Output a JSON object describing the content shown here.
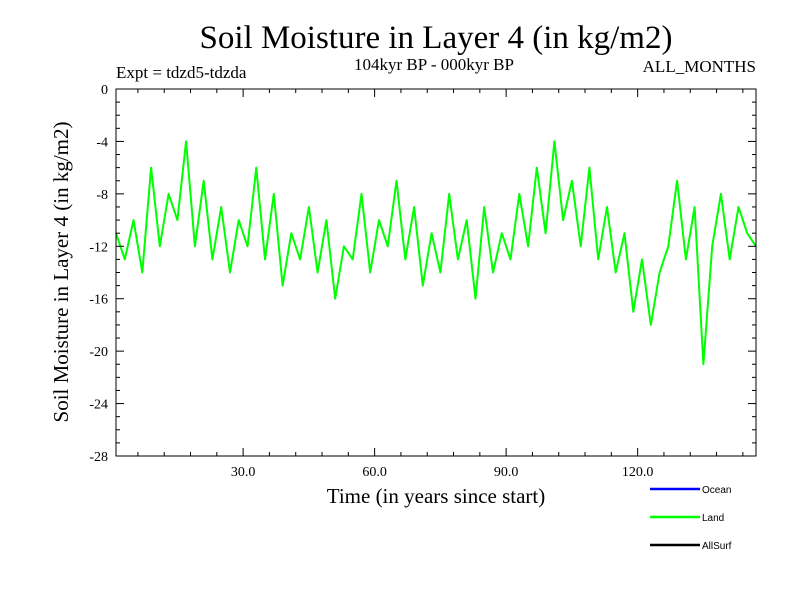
{
  "chart_data": {
    "type": "line",
    "title": "Soil Moisture in Layer 4 (in kg/m2)",
    "subtitle": "104kyr BP - 000kyr BP",
    "experiment": "Expt = tdzd5-tdzda",
    "months": "ALL_MONTHS",
    "xlabel": "Time (in years since start)",
    "ylabel": "Soil Moisture in Layer 4 (in kg/m2)",
    "xlim": [
      1,
      147
    ],
    "ylim": [
      -28,
      0
    ],
    "xticks": [
      30,
      60,
      90,
      120
    ],
    "xtick_labels": [
      "30.0",
      "60.0",
      "90.0",
      "120.0"
    ],
    "yticks": [
      0,
      -4,
      -8,
      -12,
      -16,
      -20,
      -24,
      -28
    ],
    "ytick_labels": [
      "0",
      "-4",
      "-8",
      "-12",
      "-16",
      "-20",
      "-24",
      "-28"
    ],
    "legend": [
      {
        "name": "Ocean",
        "color": "#0000ff"
      },
      {
        "name": "Land",
        "color": "#00ff00"
      },
      {
        "name": "AllSurf",
        "color": "#000000"
      }
    ],
    "series": [
      {
        "name": "Land",
        "color": "#00ff00",
        "x": [
          1,
          3,
          5,
          7,
          9,
          11,
          13,
          15,
          17,
          19,
          21,
          23,
          25,
          27,
          29,
          31,
          33,
          35,
          37,
          39,
          41,
          43,
          45,
          47,
          49,
          51,
          53,
          55,
          57,
          59,
          61,
          63,
          65,
          67,
          69,
          71,
          73,
          75,
          77,
          79,
          81,
          83,
          85,
          87,
          89,
          91,
          93,
          95,
          97,
          99,
          101,
          103,
          105,
          107,
          109,
          111,
          113,
          115,
          117,
          119,
          121,
          123,
          125,
          127,
          129,
          131,
          133,
          135,
          137,
          139,
          141,
          143,
          145,
          147
        ],
        "values": [
          -11,
          -13,
          -10,
          -14,
          -6,
          -12,
          -8,
          -10,
          -4,
          -12,
          -7,
          -13,
          -9,
          -14,
          -10,
          -12,
          -6,
          -13,
          -8,
          -15,
          -11,
          -13,
          -9,
          -14,
          -10,
          -16,
          -12,
          -13,
          -8,
          -14,
          -10,
          -12,
          -7,
          -13,
          -9,
          -15,
          -11,
          -14,
          -8,
          -13,
          -10,
          -16,
          -9,
          -14,
          -11,
          -13,
          -8,
          -12,
          -6,
          -11,
          -4,
          -10,
          -7,
          -12,
          -6,
          -13,
          -9,
          -14,
          -11,
          -17,
          -13,
          -18,
          -14,
          -12,
          -7,
          -13,
          -9,
          -21,
          -12,
          -8,
          -13,
          -9,
          -11,
          -12
        ]
      }
    ]
  }
}
